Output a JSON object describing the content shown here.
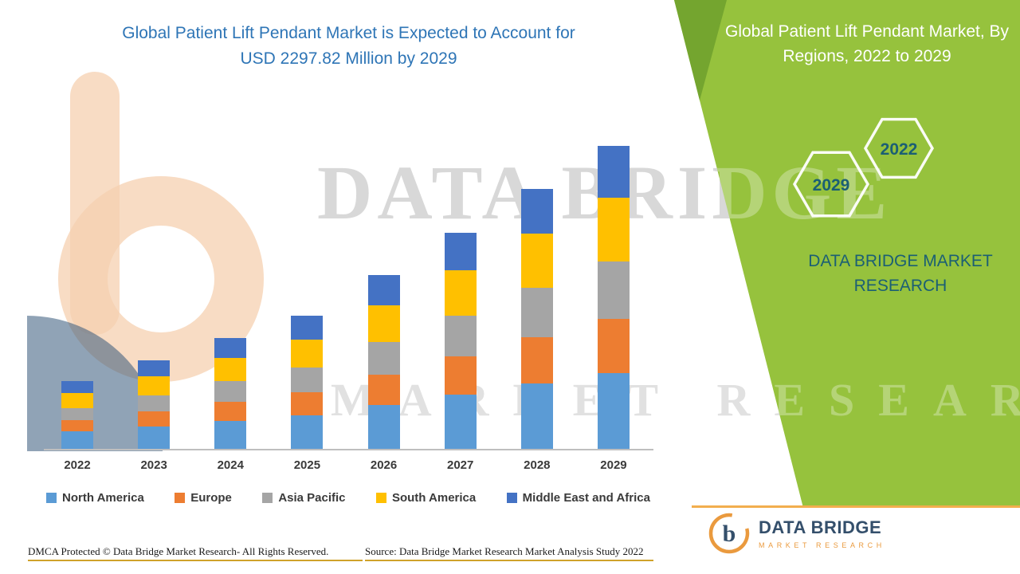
{
  "titles": {
    "left_line1": "Global Patient Lift Pendant Market is Expected to Account for",
    "left_line2": "USD 2297.82 Million by 2029",
    "right_panel": "Global Patient Lift Pendant Market, By Regions, 2022 to 2029",
    "brand_line1": "DATA BRIDGE MARKET",
    "brand_line2": "RESEARCH"
  },
  "badges": {
    "hexagon_top": "2022",
    "hexagon_bottom": "2029"
  },
  "watermark": {
    "line1": "DATA BRIDGE",
    "line2": "MARKET RESEARCH"
  },
  "footer": {
    "dmca": "DMCA Protected © Data Bridge Market Research- All Rights Reserved.",
    "source": "Source: Data Bridge Market Research Market Analysis Study 2022"
  },
  "logo": {
    "name": "DATA BRIDGE",
    "tagline": "MARKET RESEARCH",
    "mark_letter": "b"
  },
  "colors": {
    "green_panel": "#96c23d",
    "green_accent": "#74a52f",
    "title_blue": "#2e75b6",
    "brand_teal": "#1b5f74",
    "footer_rule": "#d0a22a",
    "logo_orange": "#e9922e",
    "logo_navy": "#23415f"
  },
  "chart_data": {
    "type": "bar",
    "stacked": true,
    "title": "Global Patient Lift Pendant Market is Expected to Account for USD 2297.82 Million by 2029",
    "unit": "USD Million",
    "note": "values estimated from bar heights; 2029 total labeled as 2297.82 USD Million",
    "categories": [
      "2022",
      "2023",
      "2024",
      "2025",
      "2026",
      "2027",
      "2028",
      "2029"
    ],
    "series": [
      {
        "name": "North America",
        "color": "#5b9bd5",
        "values": [
          133,
          169,
          212,
          254,
          333,
          411,
          496,
          575
        ]
      },
      {
        "name": "Europe",
        "color": "#ed7d31",
        "values": [
          85,
          115,
          145,
          175,
          230,
          290,
          351,
          411
        ]
      },
      {
        "name": "Asia Pacific",
        "color": "#a5a5a5",
        "values": [
          91,
          121,
          157,
          188,
          248,
          309,
          375,
          436
        ]
      },
      {
        "name": "South America",
        "color": "#ffc000",
        "values": [
          115,
          145,
          175,
          212,
          278,
          345,
          411,
          484
        ]
      },
      {
        "name": "Middle East and Africa",
        "color": "#4472c4",
        "values": [
          91,
          121,
          151,
          182,
          230,
          284,
          339,
          392
        ]
      }
    ],
    "totals": [
      515,
      671,
      840,
      1011,
      1319,
      1639,
      1972,
      2298
    ],
    "xlabel": "",
    "ylabel": "",
    "legend_position": "bottom",
    "axes": {
      "x_visible": true,
      "y_visible": false,
      "gridlines": false
    }
  }
}
